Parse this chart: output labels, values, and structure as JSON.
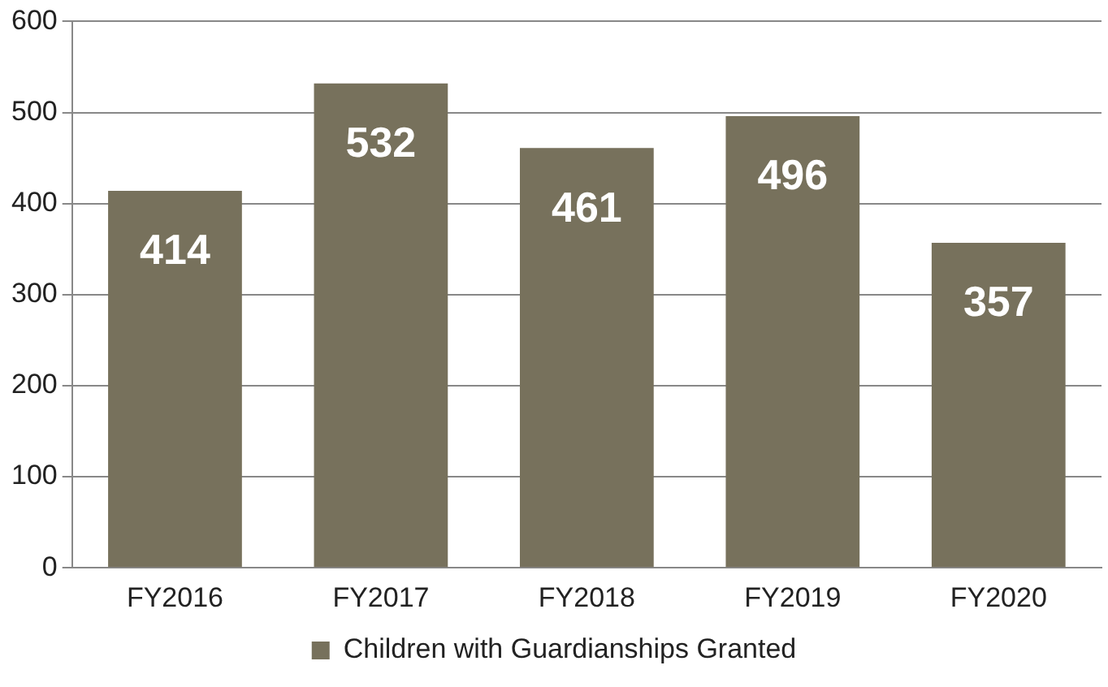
{
  "chart_data": {
    "type": "bar",
    "categories": [
      "FY2016",
      "FY2017",
      "FY2018",
      "FY2019",
      "FY2020"
    ],
    "series": [
      {
        "name": "Children with Guardianships Granted",
        "color": "#77715c",
        "values": [
          414,
          532,
          461,
          496,
          357
        ]
      }
    ],
    "ylim": [
      0,
      600
    ],
    "yticks": [
      0,
      100,
      200,
      300,
      400,
      500,
      600
    ],
    "grid": "y",
    "legend": "bottom",
    "data_labels": true
  }
}
